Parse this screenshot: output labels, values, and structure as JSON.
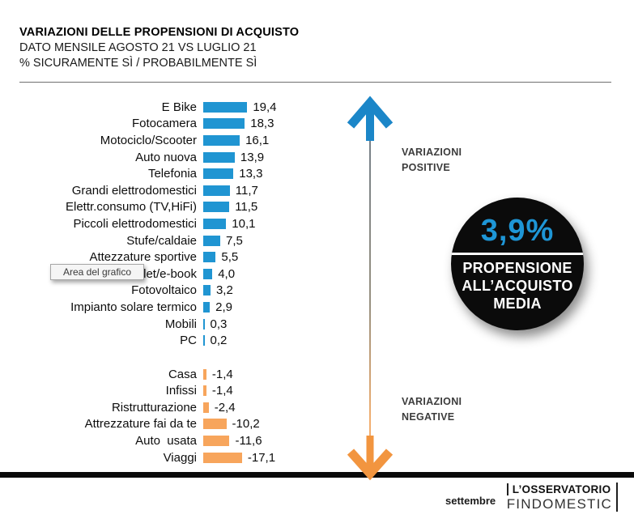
{
  "header": {
    "title": "VARIAZIONI DELLE PROPENSIONI DI ACQUISTO",
    "subtitle_line1": "DATO MENSILE AGOSTO 21 VS LUGLIO 21",
    "subtitle_line2": "% SICURAMENTE SÌ / PROBABILMENTE SÌ"
  },
  "chart_data": {
    "type": "bar",
    "orientation": "horizontal",
    "decimal_separator": ",",
    "series": [
      {
        "name": "VARIAZIONI POSITIVE",
        "color": "#2095D2",
        "points": [
          {
            "label": "E Bike",
            "value": 19.4
          },
          {
            "label": "Fotocamera",
            "value": 18.3
          },
          {
            "label": "Motociclo/Scooter",
            "value": 16.1
          },
          {
            "label": "Auto nuova",
            "value": 13.9
          },
          {
            "label": "Telefonia",
            "value": 13.3
          },
          {
            "label": "Grandi elettrodomestici",
            "value": 11.7
          },
          {
            "label": "Elettr.consumo (TV,HiFi)",
            "value": 11.5
          },
          {
            "label": "Piccoli elettrodomestici",
            "value": 10.1
          },
          {
            "label": "Stufe/caldaie",
            "value": 7.5
          },
          {
            "label": "Attezzature sportive",
            "value": 5.5
          },
          {
            "label": "Tablet/e-book",
            "value": 4.0
          },
          {
            "label": "Fotovoltaico",
            "value": 3.2
          },
          {
            "label": "Impianto solare termico",
            "value": 2.9
          },
          {
            "label": "Mobili",
            "value": 0.3
          },
          {
            "label": "PC",
            "value": 0.2
          }
        ]
      },
      {
        "name": "VARIAZIONI NEGATIVE",
        "color": "#F7A55C",
        "points": [
          {
            "label": "Casa",
            "value": -1.4
          },
          {
            "label": "Infissi",
            "value": -1.4
          },
          {
            "label": "Ristrutturazione",
            "value": -2.4
          },
          {
            "label": "Attrezzature fai da te",
            "value": -10.2
          },
          {
            "label": "Auto  usata",
            "value": -11.6
          },
          {
            "label": "Viaggi",
            "value": -17.1
          }
        ]
      }
    ]
  },
  "annotations": {
    "positive": {
      "line1": "VARIAZIONI",
      "line2": "POSITIVE"
    },
    "negative": {
      "line1": "VARIAZIONI",
      "line2": "NEGATIVE"
    },
    "arrow_up_color": "#1B86C8",
    "arrow_down_color": "#F2953F"
  },
  "badge": {
    "value": "3,9%",
    "value_color": "#1E96D6",
    "background": "#0B0B0B",
    "line1": "PROPENSIONE",
    "line2": "ALL’ACQUISTO",
    "line3": "MEDIA"
  },
  "tooltip": {
    "text": "Area del grafico"
  },
  "footer": {
    "month": "settembre",
    "logo_line1": "L’OSSERVATORIO",
    "logo_line2": "FINDOMESTIC"
  }
}
